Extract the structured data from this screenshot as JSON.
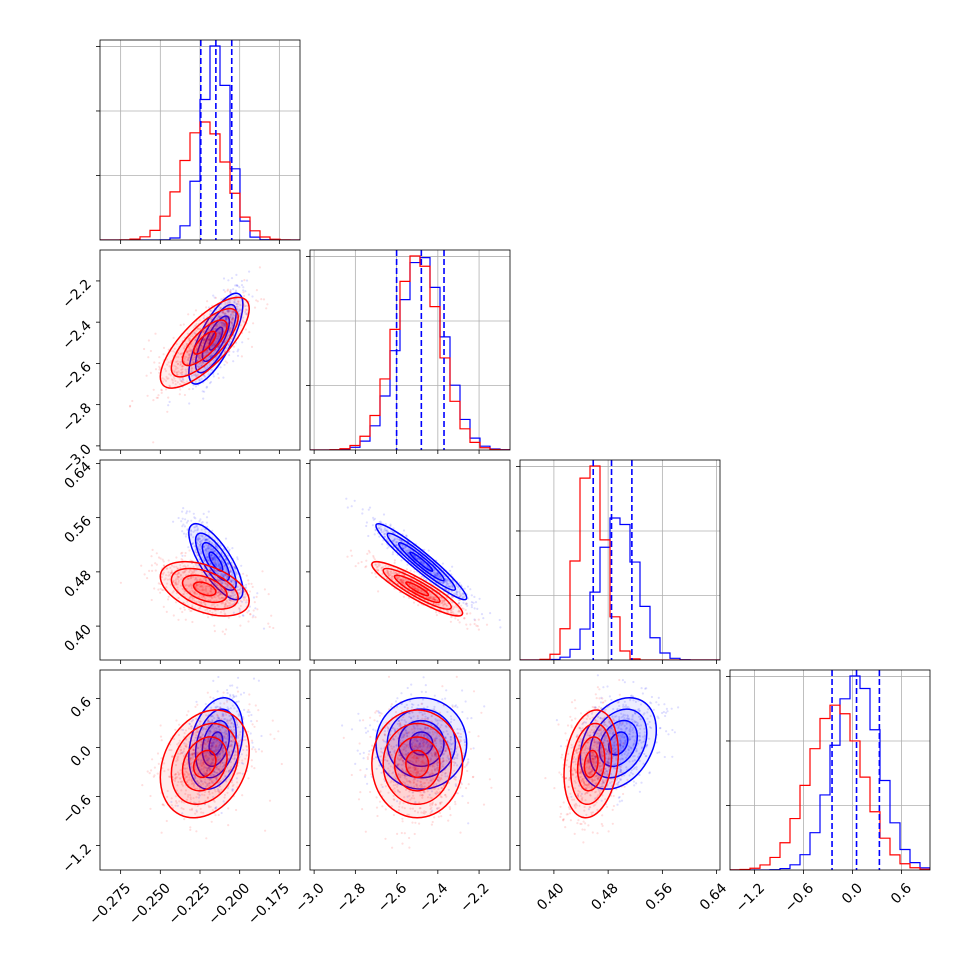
{
  "chart_data": {
    "type": "corner",
    "title": "",
    "colors": {
      "a": "#0000ff",
      "b": "#ff0000"
    },
    "grid": true,
    "series": [
      {
        "color": "#0000ff",
        "means": [
          -0.215,
          -2.48,
          0.495,
          0.05
        ],
        "sds": [
          0.0085,
          0.11,
          0.028,
          0.28
        ],
        "corr": [
          [
            1,
            0.75,
            -0.75,
            0.3
          ],
          [
            0.75,
            1,
            -0.95,
            0.0
          ],
          [
            -0.75,
            -0.95,
            1,
            0.3
          ],
          [
            0.3,
            0.0,
            0.3,
            1
          ]
        ]
      },
      {
        "color": "#ff0000",
        "means": [
          -0.222,
          -2.5,
          0.455,
          -0.2
        ],
        "sds": [
          0.014,
          0.11,
          0.02,
          0.33
        ],
        "corr": [
          [
            1,
            0.75,
            -0.45,
            0.25
          ],
          [
            0.75,
            1,
            -0.9,
            0.0
          ],
          [
            -0.45,
            -0.9,
            1,
            0.2
          ],
          [
            0.25,
            0.0,
            0.2,
            1
          ]
        ]
      }
    ],
    "quantile_lines": [
      [
        -0.2245,
        -0.215,
        -0.205
      ],
      [
        -2.6,
        -2.48,
        -2.37
      ],
      [
        0.458,
        0.485,
        0.515
      ],
      [
        -0.25,
        0.05,
        0.33
      ]
    ],
    "params": [
      {
        "range": [
          -0.288,
          -0.162
        ],
        "ticks": [
          "−0.275",
          "−0.250",
          "−0.225",
          "−0.200",
          "−0.175"
        ],
        "tick_values": [
          -0.275,
          -0.25,
          -0.225,
          -0.2,
          -0.175
        ]
      },
      {
        "range": [
          -3.02,
          -2.05
        ],
        "ticks": [
          "−3.0",
          "−2.8",
          "−2.6",
          "−2.4",
          "−2.2"
        ],
        "tick_values": [
          -3.0,
          -2.8,
          -2.6,
          -2.4,
          -2.2
        ]
      },
      {
        "range": [
          0.35,
          0.645
        ],
        "ticks": [
          "0.40",
          "0.48",
          "0.56",
          "0.64"
        ],
        "tick_values": [
          0.4,
          0.48,
          0.56,
          0.64
        ]
      },
      {
        "range": [
          -1.5,
          0.95
        ],
        "ticks": [
          "−1.2",
          "−0.6",
          "0.0",
          "0.6"
        ],
        "tick_values": [
          -1.2,
          -0.6,
          0.0,
          0.6
        ]
      }
    ]
  }
}
